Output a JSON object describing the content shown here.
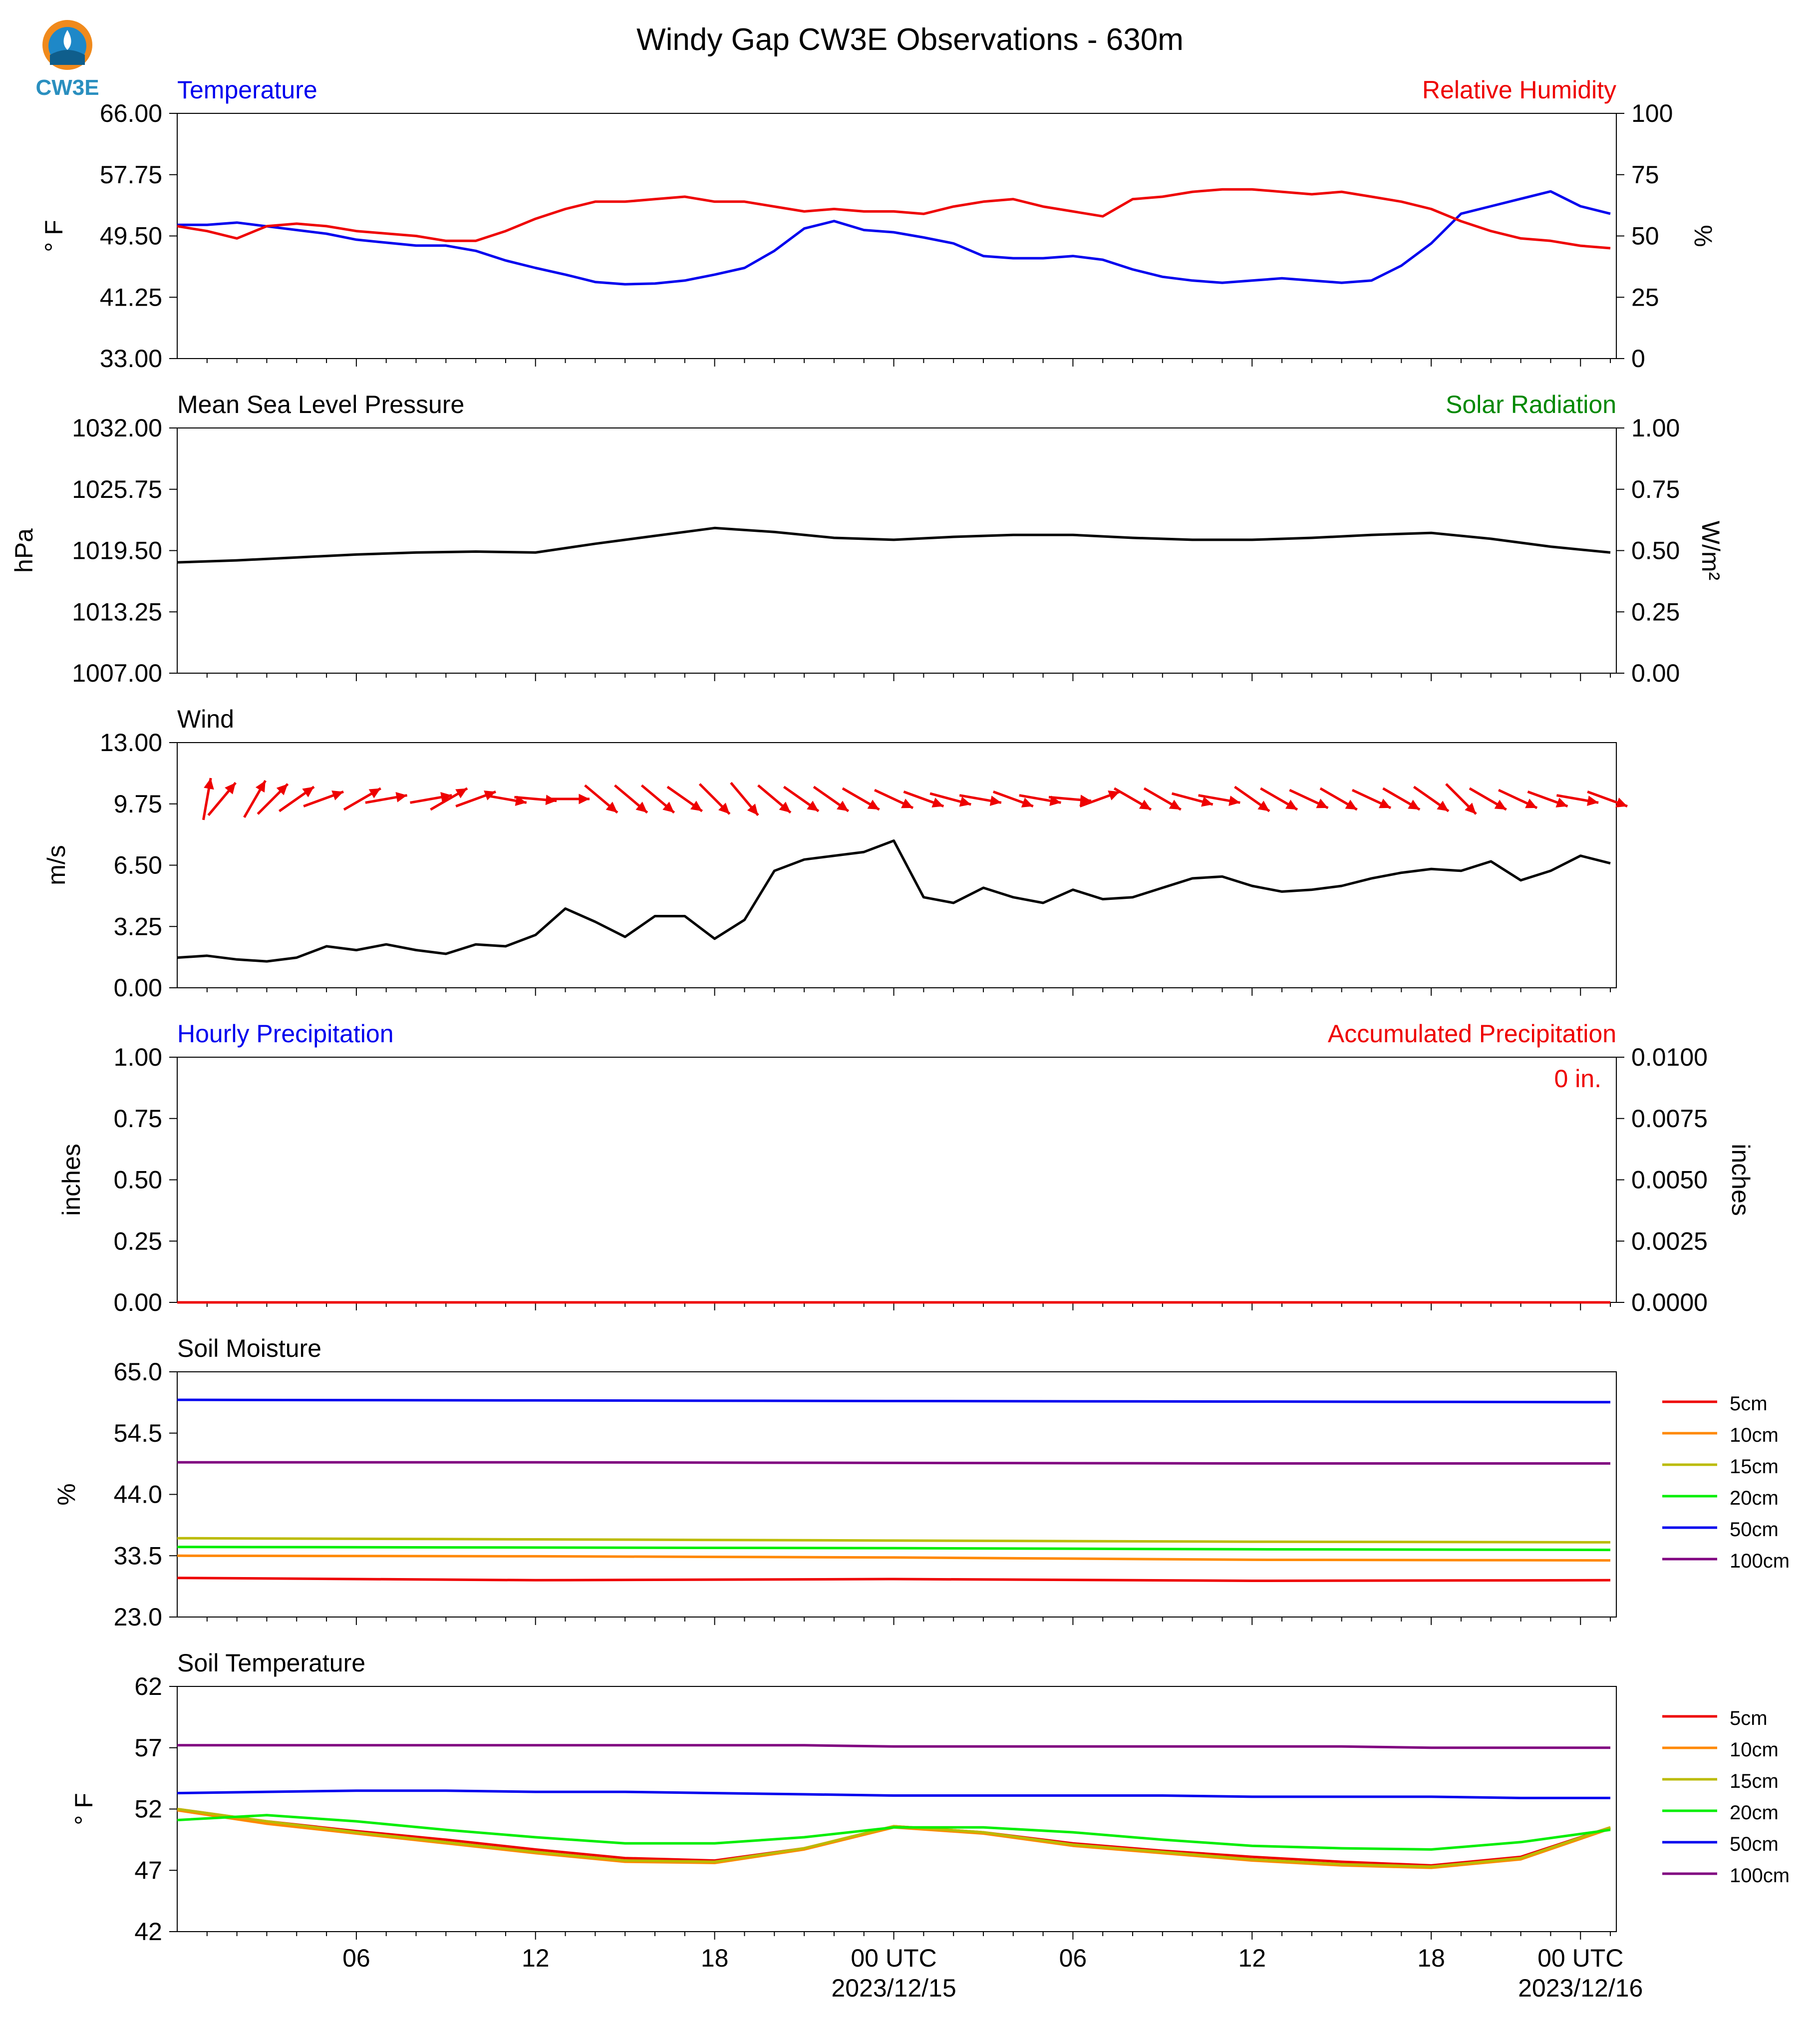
{
  "title": "Windy Gap CW3E Observations - 630m",
  "logo_text": "CW3E",
  "colors": {
    "blue": "#0000ee",
    "red": "#ee0000",
    "green": "#008800",
    "black": "#000000"
  },
  "x_axis": {
    "ticks": [
      {
        "label": "06",
        "line2": ""
      },
      {
        "label": "12",
        "line2": ""
      },
      {
        "label": "18",
        "line2": ""
      },
      {
        "label": "00 UTC",
        "line2": "2023/12/15"
      },
      {
        "label": "06",
        "line2": ""
      },
      {
        "label": "12",
        "line2": ""
      },
      {
        "label": "18",
        "line2": ""
      },
      {
        "label": "00 UTC",
        "line2": "2023/12/16"
      }
    ]
  },
  "chart_data": [
    {
      "type": "line",
      "left_title": "Temperature",
      "right_title": "Relative Humidity",
      "ylabel": "° F",
      "y2label": "%",
      "ylim": [
        33,
        66
      ],
      "yticks": [
        "66.00",
        "57.75",
        "49.50",
        "41.25",
        "33.00"
      ],
      "y2lim": [
        0,
        100
      ],
      "y2ticks": [
        "100",
        "75",
        "50",
        "25",
        "0"
      ],
      "x_hours": [
        0,
        1,
        2,
        3,
        4,
        5,
        6,
        7,
        8,
        9,
        10,
        11,
        12,
        13,
        14,
        15,
        16,
        17,
        18,
        19,
        20,
        21,
        22,
        23,
        24,
        25,
        26,
        27,
        28,
        29,
        30,
        31,
        32,
        33,
        34,
        35,
        36,
        37,
        38,
        39,
        40,
        41,
        42,
        43,
        44,
        45,
        46,
        47,
        48
      ],
      "series": [
        {
          "name": "Temperature",
          "axis": "left",
          "color": "#0000ee",
          "values": [
            51,
            51,
            51.3,
            50.8,
            50.3,
            49.8,
            49,
            48.6,
            48.2,
            48.2,
            47.5,
            46.2,
            45.2,
            44.3,
            43.3,
            43,
            43.1,
            43.5,
            44.3,
            45.2,
            47.5,
            50.5,
            51.5,
            50.3,
            50,
            49.3,
            48.5,
            46.8,
            46.5,
            46.5,
            46.8,
            46.3,
            45,
            44,
            43.5,
            43.2,
            43.5,
            43.8,
            43.5,
            43.2,
            43.5,
            45.5,
            48.5,
            52.5,
            53.5,
            54.5,
            55.5,
            53.5,
            52.5
          ]
        },
        {
          "name": "Relative Humidity",
          "axis": "right",
          "color": "#ee0000",
          "values": [
            54,
            52,
            49,
            54,
            55,
            54,
            52,
            51,
            50,
            48,
            48,
            52,
            57,
            61,
            64,
            64,
            65,
            66,
            64,
            64,
            62,
            60,
            61,
            60,
            60,
            59,
            62,
            64,
            65,
            62,
            60,
            58,
            65,
            66,
            68,
            69,
            69,
            68,
            67,
            68,
            66,
            64,
            61,
            56,
            52,
            49,
            48,
            46,
            45
          ]
        }
      ]
    },
    {
      "type": "line",
      "left_title": "Mean Sea Level Pressure",
      "right_title": "Solar Radiation",
      "ylabel": "hPa",
      "y2label": "W/m²",
      "ylim": [
        1007,
        1032
      ],
      "yticks": [
        "1032.00",
        "1025.75",
        "1019.50",
        "1013.25",
        "1007.00"
      ],
      "y2lim": [
        0,
        1
      ],
      "y2ticks": [
        "1.00",
        "0.75",
        "0.50",
        "0.25",
        "0.00"
      ],
      "x_hours": [
        0,
        2,
        4,
        6,
        8,
        10,
        12,
        14,
        16,
        18,
        20,
        22,
        24,
        26,
        28,
        30,
        32,
        34,
        36,
        38,
        40,
        42,
        44,
        46,
        48
      ],
      "series": [
        {
          "name": "Mean Sea Level Pressure",
          "axis": "left",
          "color": "#000000",
          "values": [
            1018.3,
            1018.5,
            1018.8,
            1019.1,
            1019.3,
            1019.4,
            1019.3,
            1020.2,
            1021,
            1021.8,
            1021.4,
            1020.8,
            1020.6,
            1020.9,
            1021.1,
            1021.1,
            1020.8,
            1020.6,
            1020.6,
            1020.8,
            1021.1,
            1021.3,
            1020.7,
            1019.9,
            1019.3
          ]
        }
      ]
    },
    {
      "type": "line",
      "left_title": "Wind",
      "ylabel": "m/s",
      "ylim": [
        0,
        13
      ],
      "yticks": [
        "13.00",
        "9.75",
        "6.50",
        "3.25",
        "0.00"
      ],
      "x_hours": [
        0,
        1,
        2,
        3,
        4,
        5,
        6,
        7,
        8,
        9,
        10,
        11,
        12,
        13,
        14,
        15,
        16,
        17,
        18,
        19,
        20,
        21,
        22,
        23,
        24,
        25,
        26,
        27,
        28,
        29,
        30,
        31,
        32,
        33,
        34,
        35,
        36,
        37,
        38,
        39,
        40,
        41,
        42,
        43,
        44,
        45,
        46,
        47,
        48
      ],
      "series": [
        {
          "name": "Wind",
          "axis": "left",
          "color": "#000000",
          "values": [
            1.6,
            1.7,
            1.5,
            1.4,
            1.6,
            2.2,
            2,
            2.3,
            2,
            1.8,
            2.3,
            2.2,
            2.8,
            4.2,
            3.5,
            2.7,
            3.8,
            3.8,
            2.6,
            3.6,
            6.2,
            6.8,
            7,
            7.2,
            7.8,
            4.8,
            4.5,
            5.3,
            4.8,
            4.5,
            5.2,
            4.7,
            4.8,
            5.3,
            5.8,
            5.9,
            5.4,
            5.1,
            5.2,
            5.4,
            5.8,
            6.1,
            6.3,
            6.2,
            6.7,
            5.7,
            6.2,
            7,
            6.6
          ]
        }
      ],
      "barbs": {
        "color": "#ee0000",
        "times": [
          1,
          1.5,
          2.6,
          3.2,
          4,
          4.9,
          6.2,
          7,
          8.5,
          9.1,
          10,
          11,
          12,
          13.1,
          14.2,
          15.2,
          16.1,
          17,
          18,
          19,
          20,
          20.9,
          21.9,
          22.9,
          24,
          25,
          25.9,
          26.9,
          28,
          28.9,
          29.9,
          30.9,
          32,
          33,
          34,
          34.9,
          36,
          36.9,
          37.9,
          38.9,
          40,
          41,
          42,
          43,
          43.9,
          44.9,
          45.9,
          46.9,
          47.9
        ],
        "directions_deg": [
          10,
          40,
          30,
          45,
          55,
          70,
          60,
          80,
          80,
          60,
          70,
          100,
          95,
          90,
          130,
          130,
          130,
          125,
          135,
          140,
          130,
          125,
          125,
          120,
          115,
          110,
          105,
          100,
          110,
          100,
          95,
          70,
          120,
          120,
          105,
          100,
          125,
          120,
          115,
          120,
          115,
          120,
          125,
          135,
          120,
          115,
          110,
          100,
          110
        ]
      }
    },
    {
      "type": "line",
      "left_title": "Hourly Precipitation",
      "right_title": "Accumulated Precipitation",
      "annotation": "0 in.",
      "ylabel": "inches",
      "y2label": "inches",
      "ylim": [
        0,
        1
      ],
      "yticks": [
        "1.00",
        "0.75",
        "0.50",
        "0.25",
        "0.00"
      ],
      "y2lim": [
        0,
        0.01
      ],
      "y2ticks": [
        "0.0100",
        "0.0075",
        "0.0050",
        "0.0025",
        "0.0000"
      ],
      "series": [
        {
          "name": "Hourly Precipitation",
          "axis": "left",
          "color": "#0000ee",
          "values": [
            0,
            0
          ]
        },
        {
          "name": "Accumulated Precipitation",
          "axis": "right",
          "color": "#ee0000",
          "values": [
            0,
            0
          ]
        }
      ],
      "x_hours": [
        0,
        48
      ]
    },
    {
      "type": "line",
      "left_title": "Soil Moisture",
      "ylabel": "%",
      "ylim": [
        23,
        65
      ],
      "yticks": [
        "65.0",
        "54.5",
        "44.0",
        "33.5",
        "23.0"
      ],
      "x_hours": [
        0,
        12,
        24,
        36,
        48
      ],
      "legend": "right",
      "series": [
        {
          "name": "5cm",
          "color": "#ee0000",
          "values": [
            29.7,
            29.3,
            29.5,
            29.2,
            29.3
          ]
        },
        {
          "name": "10cm",
          "color": "#ff8800",
          "values": [
            33.5,
            33.4,
            33.2,
            32.8,
            32.7
          ]
        },
        {
          "name": "15cm",
          "color": "#bbbb00",
          "values": [
            36.5,
            36.3,
            36.1,
            35.9,
            35.8
          ]
        },
        {
          "name": "20cm",
          "color": "#00ee00",
          "values": [
            35,
            34.9,
            34.8,
            34.6,
            34.5
          ]
        },
        {
          "name": "50cm",
          "color": "#0000ee",
          "values": [
            60.2,
            60.1,
            60,
            59.9,
            59.8
          ]
        },
        {
          "name": "100cm",
          "color": "#800080",
          "values": [
            49.5,
            49.5,
            49.4,
            49.3,
            49.3
          ]
        }
      ]
    },
    {
      "type": "line",
      "left_title": "Soil Temperature",
      "ylabel": "° F",
      "ylim": [
        42,
        62
      ],
      "yticks": [
        "62",
        "57",
        "52",
        "47",
        "42"
      ],
      "x_hours": [
        0,
        3,
        6,
        9,
        12,
        15,
        18,
        21,
        24,
        27,
        30,
        33,
        36,
        39,
        42,
        45,
        48
      ],
      "legend": "right",
      "series": [
        {
          "name": "5cm",
          "color": "#ee0000",
          "values": [
            52,
            51,
            50.2,
            49.5,
            48.7,
            48,
            47.8,
            48.8,
            50.6,
            50.1,
            49.2,
            48.6,
            48.1,
            47.7,
            47.4,
            48.1,
            50.5
          ]
        },
        {
          "name": "10cm",
          "color": "#ff8800",
          "values": [
            51.9,
            50.8,
            50,
            49.2,
            48.4,
            47.7,
            47.6,
            48.7,
            50.5,
            50,
            49,
            48.4,
            47.8,
            47.4,
            47.2,
            47.9,
            50.4
          ]
        },
        {
          "name": "15cm",
          "color": "#bbbb00",
          "values": [
            52,
            51,
            50.1,
            49.3,
            48.5,
            47.8,
            47.7,
            48.8,
            50.6,
            50.1,
            49.1,
            48.5,
            47.9,
            47.5,
            47.3,
            48,
            50.5
          ]
        },
        {
          "name": "20cm",
          "color": "#00ee00",
          "values": [
            51.1,
            51.5,
            51,
            50.3,
            49.7,
            49.2,
            49.2,
            49.7,
            50.5,
            50.5,
            50.1,
            49.5,
            49,
            48.8,
            48.7,
            49.3,
            50.3
          ]
        },
        {
          "name": "50cm",
          "color": "#0000ee",
          "values": [
            53.3,
            53.4,
            53.5,
            53.5,
            53.4,
            53.4,
            53.3,
            53.2,
            53.1,
            53.1,
            53.1,
            53.1,
            53,
            53,
            53,
            52.9,
            52.9
          ]
        },
        {
          "name": "100cm",
          "color": "#800080",
          "values": [
            57.2,
            57.2,
            57.2,
            57.2,
            57.2,
            57.2,
            57.2,
            57.2,
            57.1,
            57.1,
            57.1,
            57.1,
            57.1,
            57.1,
            57,
            57,
            57
          ]
        }
      ]
    }
  ]
}
